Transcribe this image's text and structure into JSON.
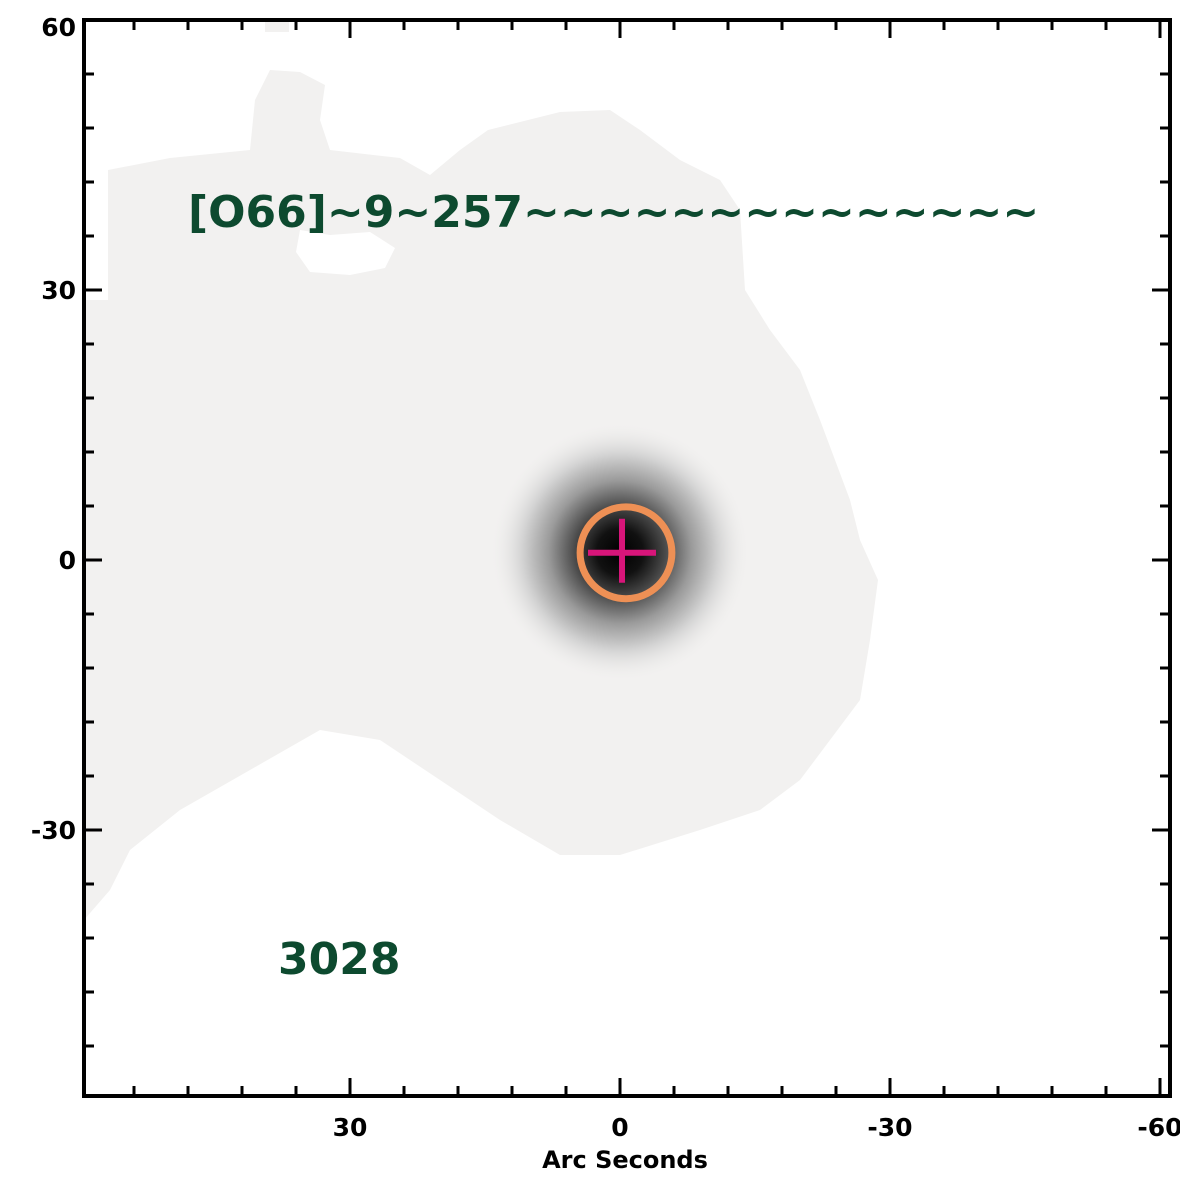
{
  "chart_data": {
    "type": "heatmap",
    "xlabel": "Arc Seconds",
    "ylabel": "",
    "xlim": [
      60,
      -60
    ],
    "ylim": [
      -60,
      60
    ],
    "x_ticks": [
      {
        "value": 30,
        "label": "30"
      },
      {
        "value": 0,
        "label": "0"
      },
      {
        "value": -30,
        "label": "-30"
      },
      {
        "value": -60,
        "label": "-60"
      }
    ],
    "y_ticks": [
      {
        "value": 60,
        "label": "60"
      },
      {
        "value": 30,
        "label": "30"
      },
      {
        "value": 0,
        "label": "0"
      },
      {
        "value": -30,
        "label": "-30"
      }
    ],
    "source": {
      "x": 0,
      "y": 0.8,
      "label": "centroid"
    },
    "circle": {
      "x": 0,
      "y": 0.8,
      "radius": 5.1
    },
    "annotations": [
      {
        "text": "[O66]~9~257~~~~~~~~~~~~~~",
        "x": 48,
        "y": 37,
        "color": "#0d4a2f"
      },
      {
        "text": "3028",
        "x": 38,
        "y": -46,
        "color": "#0d4a2f"
      }
    ],
    "colors": {
      "diffuse": "#f2f1f0",
      "core": "#000000",
      "circle": "#ee9055",
      "cross": "#d8157a",
      "text": "#0d4a2f"
    }
  }
}
